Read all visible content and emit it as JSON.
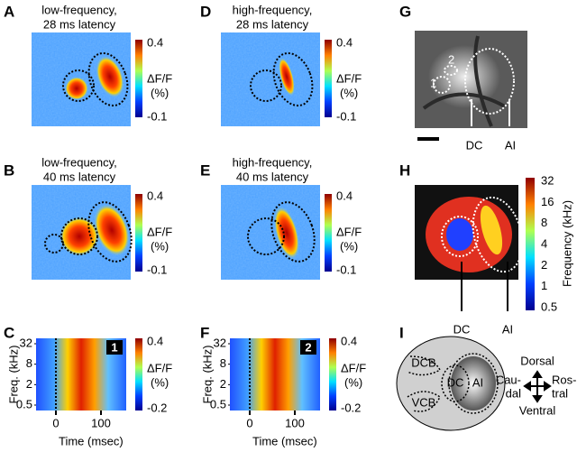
{
  "panels": {
    "A": {
      "letter": "A",
      "title": [
        "low-frequency,",
        "28 ms latency"
      ],
      "colorbar": {
        "max": 0.4,
        "label": [
          "ΔF/F",
          "(%)"
        ],
        "min": -0.1
      }
    },
    "D": {
      "letter": "D",
      "title": [
        "high-frequency,",
        "28 ms latency"
      ],
      "colorbar": {
        "max": 0.4,
        "label": [
          "ΔF/F",
          "(%)"
        ],
        "min": -0.1
      }
    },
    "G": {
      "letter": "G",
      "labels": [
        "1",
        "2",
        "DC",
        "AI"
      ]
    },
    "B": {
      "letter": "B",
      "title": [
        "low-frequency,",
        "40 ms latency"
      ],
      "colorbar": {
        "max": 0.4,
        "label": [
          "ΔF/F",
          "(%)"
        ],
        "min": -0.1
      }
    },
    "E": {
      "letter": "E",
      "title": [
        "high-frequency,",
        "40 ms latency"
      ],
      "colorbar": {
        "max": 0.4,
        "label": [
          "ΔF/F",
          "(%)"
        ],
        "min": -0.1
      }
    },
    "H": {
      "letter": "H",
      "labels": [
        "DC",
        "AI"
      ],
      "colorbar": {
        "ticks": [
          32,
          16,
          8,
          4,
          2,
          1,
          0.5
        ],
        "label": "Frequency (kHz)"
      }
    },
    "C": {
      "letter": "C",
      "badge": "1",
      "ylabel": "Freq. (kHz)",
      "yticks": [
        32,
        8,
        2,
        0.5
      ],
      "xlabel": "Time (msec)",
      "xticks": [
        0,
        100
      ],
      "colorbar": {
        "max": 0.4,
        "label": [
          "ΔF/F",
          "(%)"
        ],
        "min": -0.2
      }
    },
    "F": {
      "letter": "F",
      "badge": "2",
      "ylabel": "Freq. (kHz)",
      "yticks": [
        32,
        8,
        2,
        0.5
      ],
      "xlabel": "Time (msec)",
      "xticks": [
        0,
        100
      ],
      "colorbar": {
        "max": 0.4,
        "label": [
          "ΔF/F",
          "(%)"
        ],
        "min": -0.2
      }
    },
    "I": {
      "letter": "I",
      "regions": [
        "DCB",
        "VCB",
        "DC",
        "AI"
      ],
      "directions": {
        "dorsal": "Dorsal",
        "caudal": [
          "Cau-",
          "dal"
        ],
        "rostral": [
          "Ros-",
          "tral"
        ],
        "ventral": "Ventral"
      }
    }
  }
}
